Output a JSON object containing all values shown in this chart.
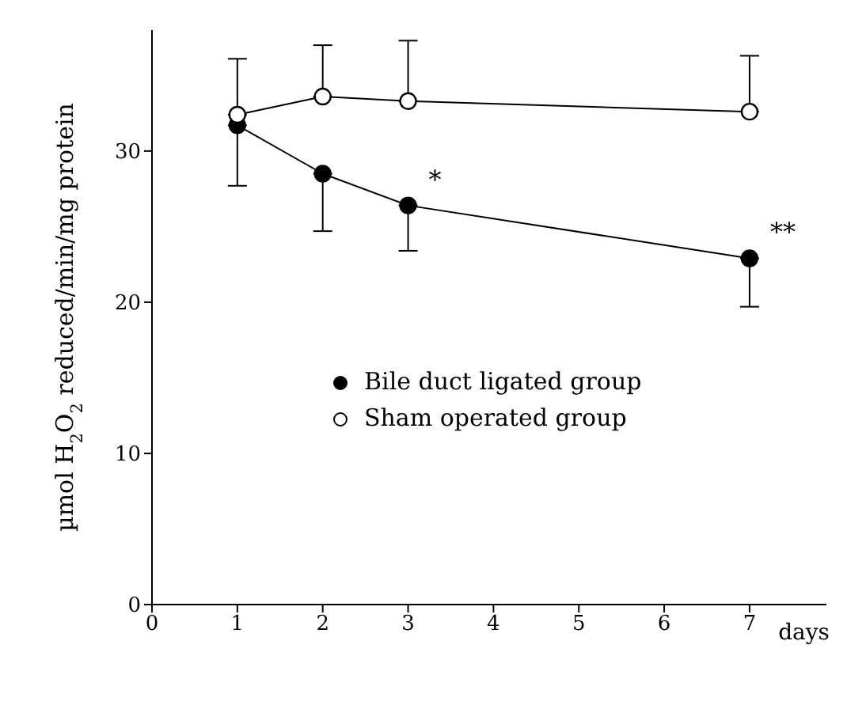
{
  "chart_data": {
    "type": "line",
    "xlabel": "days",
    "ylabel": "µmol H$_{2}$O$_{2}$ reduced/min/mg protein",
    "x": [
      1,
      2,
      3,
      7
    ],
    "series": [
      {
        "name": "Bile duct ligated group",
        "color": "#000000",
        "values": [
          31.7,
          28.5,
          26.4,
          22.9
        ],
        "errors": [
          [
            27.7,
            31.7
          ],
          [
            24.7,
            28.5
          ],
          [
            23.4,
            26.4
          ],
          [
            19.7,
            22.9
          ]
        ]
      },
      {
        "name": "Sham operated group",
        "color": "#000000",
        "values": [
          32.4,
          33.6,
          33.3,
          32.6
        ],
        "errors": [
          [
            32.4,
            36.1
          ],
          [
            33.6,
            37.0
          ],
          [
            33.3,
            37.3
          ],
          [
            32.6,
            36.3
          ]
        ]
      }
    ],
    "xlim": [
      0,
      7.9
    ],
    "xticks": [
      0,
      1,
      2,
      3,
      4,
      5,
      6,
      7
    ],
    "ylim": [
      0,
      38
    ],
    "yticks": [
      0,
      10,
      20,
      30
    ],
    "annotations": [
      {
        "text": "*",
        "x": 3,
        "y": 26.4
      },
      {
        "text": "**",
        "x": 7,
        "y": 22.9
      }
    ],
    "legend": "center",
    "marker": "circle",
    "line_style": "solid",
    "grid": false
  }
}
